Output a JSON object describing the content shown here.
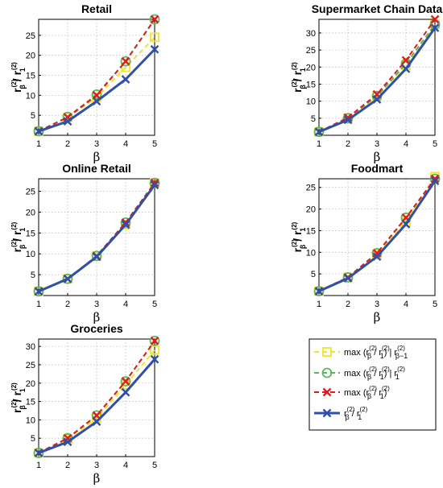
{
  "axis_text": {
    "x_label": "β",
    "y_label_r": "r",
    "y_label_sup": "(2)",
    "y_label_sub_num": "β",
    "y_label_sub_den": "1",
    "y_label_slash": "/"
  },
  "legend": {
    "entries": [
      {
        "series": "max_given_prev",
        "prefix": "max (r",
        "tail": " | r"
      },
      {
        "series": "max_given_first",
        "prefix": "max (r",
        "tail": " | r"
      },
      {
        "series": "max",
        "prefix": "max (r",
        "tail": ")"
      },
      {
        "series": "ratio",
        "prefix": "r",
        "tail": ""
      }
    ],
    "sup": "(2)",
    "sub_beta": "β",
    "sub_one": "1",
    "sub_beta_minus_one": "β−1",
    "slash": " / "
  },
  "colors": {
    "max_given_prev": "#f0e526",
    "max_given_first": "#5cb85c",
    "max": "#e41a1c",
    "ratio": "#3050a8",
    "grid": "#bdbdbd"
  },
  "chart_data": [
    {
      "type": "line",
      "title": "Retail",
      "x": [
        1,
        2,
        3,
        4,
        5
      ],
      "xlim": [
        1,
        5
      ],
      "ylim": [
        0,
        29
      ],
      "yticks": [
        5,
        10,
        15,
        20,
        25
      ],
      "grid": true,
      "series": [
        {
          "key": "max_given_prev",
          "marker": "square",
          "dash": true,
          "values": [
            1,
            4.5,
            9.5,
            17,
            24.5
          ]
        },
        {
          "key": "max_given_first",
          "marker": "circle",
          "dash": true,
          "values": [
            1,
            4.6,
            10.2,
            18.5,
            29
          ]
        },
        {
          "key": "max",
          "marker": "x",
          "dash": true,
          "values": [
            1,
            4.5,
            10,
            18.5,
            29
          ]
        },
        {
          "key": "ratio",
          "marker": "x",
          "dash": false,
          "values": [
            1,
            3.5,
            8.5,
            14,
            21.5
          ]
        }
      ]
    },
    {
      "type": "line",
      "title": "Supermarket Chain Data",
      "x": [
        1,
        2,
        3,
        4,
        5
      ],
      "xlim": [
        1,
        5
      ],
      "ylim": [
        0,
        34
      ],
      "yticks": [
        5,
        10,
        15,
        20,
        25,
        30
      ],
      "grid": true,
      "series": [
        {
          "key": "max_given_prev",
          "marker": "square",
          "dash": true,
          "values": [
            1,
            5,
            11.5,
            20.5,
            32.5
          ]
        },
        {
          "key": "max_given_first",
          "marker": "circle",
          "dash": true,
          "values": [
            1,
            5,
            11.5,
            21,
            32.5
          ]
        },
        {
          "key": "max",
          "marker": "x",
          "dash": true,
          "values": [
            1,
            5.2,
            12,
            22,
            34
          ]
        },
        {
          "key": "ratio",
          "marker": "x",
          "dash": false,
          "values": [
            1,
            4.5,
            10.5,
            19.5,
            31.5
          ]
        }
      ]
    },
    {
      "type": "line",
      "title": "Online Retail",
      "x": [
        1,
        2,
        3,
        4,
        5
      ],
      "xlim": [
        1,
        5
      ],
      "ylim": [
        0,
        28
      ],
      "yticks": [
        5,
        10,
        15,
        20,
        25
      ],
      "grid": true,
      "series": [
        {
          "key": "max_given_prev",
          "marker": "square",
          "dash": true,
          "values": [
            1,
            4,
            9.5,
            17,
            27
          ]
        },
        {
          "key": "max_given_first",
          "marker": "circle",
          "dash": true,
          "values": [
            1,
            4,
            9.5,
            17.5,
            27
          ]
        },
        {
          "key": "max",
          "marker": "x",
          "dash": true,
          "values": [
            1,
            4,
            9.5,
            17.5,
            27
          ]
        },
        {
          "key": "ratio",
          "marker": "x",
          "dash": false,
          "values": [
            1,
            4,
            9.3,
            17,
            26.5
          ]
        }
      ]
    },
    {
      "type": "line",
      "title": "Foodmart",
      "x": [
        1,
        2,
        3,
        4,
        5
      ],
      "xlim": [
        1,
        5
      ],
      "ylim": [
        0,
        27
      ],
      "yticks": [
        5,
        10,
        15,
        20,
        25
      ],
      "grid": true,
      "series": [
        {
          "key": "max_given_prev",
          "marker": "square",
          "dash": true,
          "values": [
            1,
            4.2,
            9.5,
            17,
            27.5
          ]
        },
        {
          "key": "max_given_first",
          "marker": "circle",
          "dash": true,
          "values": [
            1,
            4.2,
            9.8,
            18,
            27
          ]
        },
        {
          "key": "max",
          "marker": "x",
          "dash": true,
          "values": [
            1,
            4.2,
            9.8,
            18,
            27
          ]
        },
        {
          "key": "ratio",
          "marker": "x",
          "dash": false,
          "values": [
            1,
            4,
            9,
            16.5,
            26.5
          ]
        }
      ]
    },
    {
      "type": "line",
      "title": "Groceries",
      "x": [
        1,
        2,
        3,
        4,
        5
      ],
      "xlim": [
        1,
        5
      ],
      "ylim": [
        0,
        32
      ],
      "yticks": [
        5,
        10,
        15,
        20,
        25,
        30
      ],
      "grid": true,
      "series": [
        {
          "key": "max_given_prev",
          "marker": "square",
          "dash": true,
          "values": [
            1,
            4.8,
            10.5,
            19.5,
            29
          ]
        },
        {
          "key": "max_given_first",
          "marker": "circle",
          "dash": true,
          "values": [
            1,
            5,
            11.2,
            20.5,
            31.5
          ]
        },
        {
          "key": "max",
          "marker": "x",
          "dash": true,
          "values": [
            1,
            5,
            11.2,
            20.5,
            31.5
          ]
        },
        {
          "key": "ratio",
          "marker": "x",
          "dash": false,
          "values": [
            1,
            4,
            9.5,
            17.5,
            26.5
          ]
        }
      ]
    }
  ]
}
